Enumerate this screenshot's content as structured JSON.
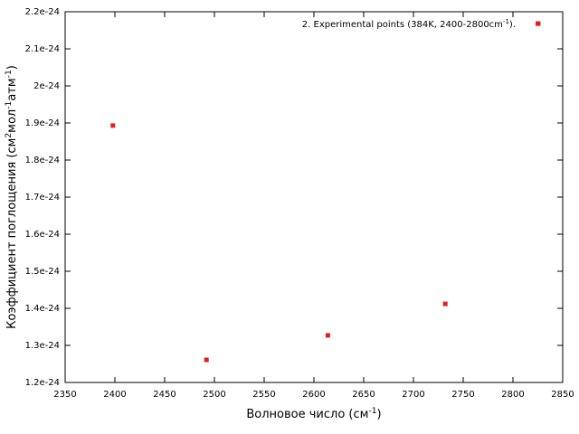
{
  "chart_data": {
    "type": "scatter",
    "xlabel": [
      "Волновое число (см",
      "-1",
      ")"
    ],
    "ylabel": [
      "Коэффициент поглощения (см",
      "2",
      "мол",
      "-1",
      "атм",
      "-1",
      ")"
    ],
    "series": [
      {
        "name": [
          "2. Experimental points (384K, 2400-2800cm",
          "-1",
          ")."
        ],
        "color": "#e02020",
        "x": [
          2398,
          2492,
          2614,
          2732,
          2825
        ],
        "values": [
          1.893e-24,
          1.261e-24,
          1.327e-24,
          1.412e-24,
          2.168e-24
        ]
      }
    ],
    "xlim": [
      2350,
      2850
    ],
    "xticks": [
      2350,
      2400,
      2450,
      2500,
      2550,
      2600,
      2650,
      2700,
      2750,
      2800,
      2850
    ],
    "ylim": [
      1.2e-24,
      2.2e-24
    ],
    "yticks": [
      {
        "value": 1.2e-24,
        "label": "1.2e-24"
      },
      {
        "value": 1.3e-24,
        "label": "1.3e-24"
      },
      {
        "value": 1.4e-24,
        "label": "1.4e-24"
      },
      {
        "value": 1.5e-24,
        "label": "1.5e-24"
      },
      {
        "value": 1.6e-24,
        "label": "1.6e-24"
      },
      {
        "value": 1.7e-24,
        "label": "1.7e-24"
      },
      {
        "value": 1.8e-24,
        "label": "1.8e-24"
      },
      {
        "value": 1.9e-24,
        "label": "1.9e-24"
      },
      {
        "value": 2e-24,
        "label": "2e-24"
      },
      {
        "value": 2.1e-24,
        "label": "2.1e-24"
      },
      {
        "value": 2.2e-24,
        "label": "2.2e-24"
      }
    ],
    "grid": false
  }
}
